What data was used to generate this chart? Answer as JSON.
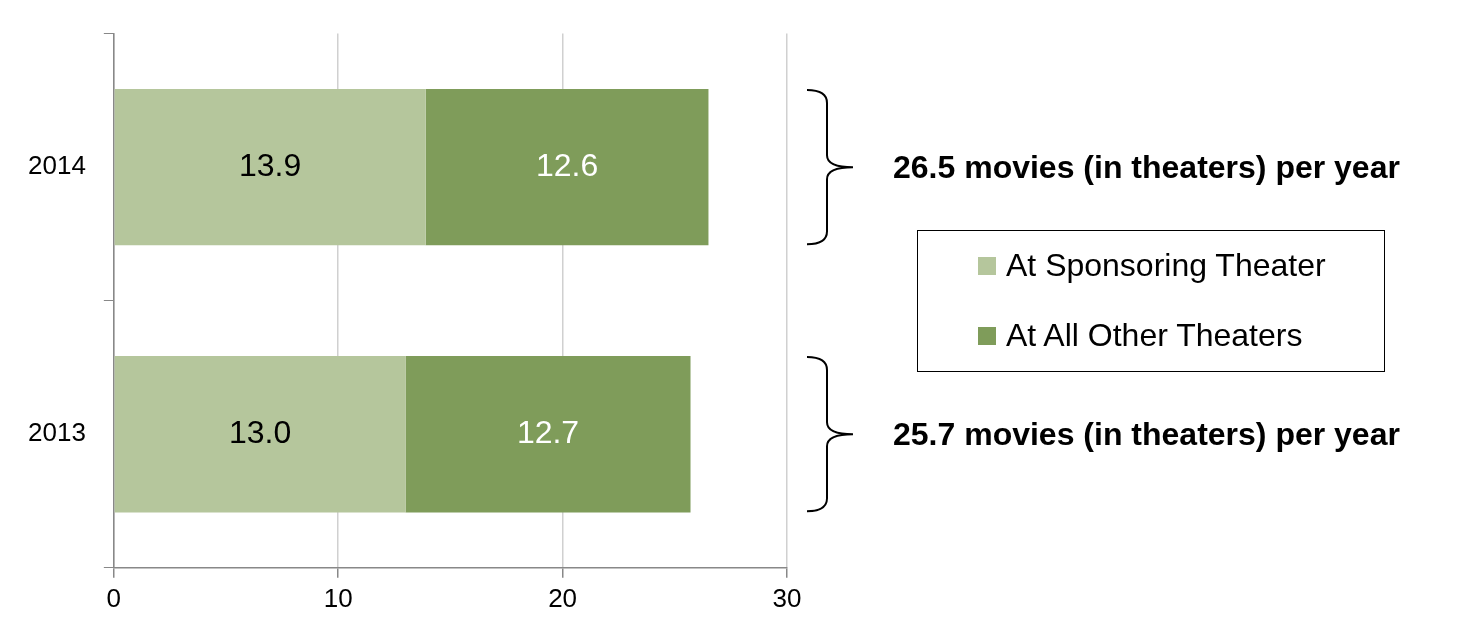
{
  "chart_data": {
    "type": "bar",
    "orientation": "horizontal",
    "stacked": true,
    "categories": [
      "2014",
      "2013"
    ],
    "series": [
      {
        "name": "At Sponsoring Theater",
        "color": "#b5c69c",
        "values": [
          13.9,
          13.0
        ],
        "value_labels": [
          "13.9",
          "13.0"
        ]
      },
      {
        "name": "At All Other Theaters",
        "color": "#7f9c5a",
        "values": [
          12.6,
          12.7
        ],
        "value_labels": [
          "12.6",
          "12.7"
        ]
      }
    ],
    "xlim": [
      0,
      30
    ],
    "xticks": [
      0,
      10,
      20,
      30
    ],
    "grid": "x",
    "legend": "right",
    "annotations": [
      "26.5 movies (in theaters) per year",
      "25.7 movies (in theaters) per year"
    ]
  }
}
